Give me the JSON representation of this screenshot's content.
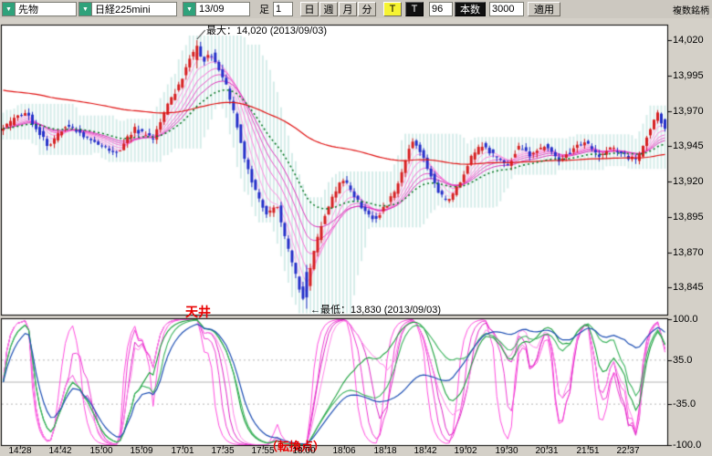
{
  "app": {
    "multi_symbol_label": "複数銘柄"
  },
  "toolbar": {
    "instrument_type": "先物",
    "instrument_name": "日経225mini",
    "contract_month": "13/09",
    "bar_type_label": "足",
    "interval_value": "1",
    "period_buttons": [
      "日",
      "週",
      "月",
      "分"
    ],
    "period_button_names": [
      "day",
      "week",
      "month",
      "minute"
    ],
    "tick_button_label": "T",
    "tick_button2_label": "T",
    "bars_value": "96",
    "bars_button_label": "本数",
    "range_value": "3000",
    "apply_button_label": "適用"
  },
  "colors": {
    "toolbar_bg": "#ccc8c0",
    "combo_button": "#2fa27b",
    "up_candle": "#d42020",
    "down_candle": "#2230c8",
    "ma_ribbon": [
      "#ffc0ec",
      "#ffa4e6",
      "#ff88df",
      "#f76cd6",
      "#ea4fc8",
      "#dc32ba"
    ],
    "ma_mid": "#0c7a28",
    "ma_long": "#e01010",
    "band": "rgba(120,195,185,0.30)",
    "osc_magenta": [
      "#ff50e0",
      "#f03cd4",
      "#e02ac8",
      "#ff86ea"
    ],
    "osc_green": [
      "#1da23e",
      "#3cb45e"
    ],
    "osc_blue": "#1d4fb4",
    "annotation_red": "#e80000"
  },
  "chart_data": {
    "type": "candlestick",
    "instrument": "日経225mini 13/09 1分足",
    "session_high": 14020,
    "session_low": 13830,
    "price_axis_labels": [
      "14,020",
      "13,995",
      "13,970",
      "13,945",
      "13,920",
      "13,895",
      "13,870",
      "13,845"
    ],
    "price_axis_values": [
      14020,
      13995,
      13970,
      13945,
      13920,
      13895,
      13870,
      13845
    ],
    "time_labels": [
      "14:28",
      "14:42",
      "15:00",
      "15:09",
      "17:01",
      "17:35",
      "17:55",
      "18:00",
      "18:06",
      "18:18",
      "18:42",
      "19:02",
      "19:30",
      "20:31",
      "21:51",
      "22:37"
    ],
    "annotations": {
      "max_text": "最大：14,020 (2013/09/03)",
      "min_text": "←最低：13,830 (2013/09/03)",
      "ceiling": "天井",
      "turning_point": "（転換点）"
    },
    "candle_count": 182,
    "peak": {
      "frac": 0.293,
      "price": 14020
    },
    "trough": {
      "frac": 0.457,
      "price": 13830
    },
    "price_path": [
      [
        0.0,
        13955
      ],
      [
        0.038,
        13970
      ],
      [
        0.073,
        13945
      ],
      [
        0.1,
        13960
      ],
      [
        0.134,
        13950
      ],
      [
        0.176,
        13940
      ],
      [
        0.203,
        13957
      ],
      [
        0.23,
        13950
      ],
      [
        0.251,
        13972
      ],
      [
        0.272,
        13990
      ],
      [
        0.285,
        14008
      ],
      [
        0.295,
        14016
      ],
      [
        0.306,
        14006
      ],
      [
        0.32,
        14010
      ],
      [
        0.34,
        13988
      ],
      [
        0.357,
        13960
      ],
      [
        0.37,
        13932
      ],
      [
        0.388,
        13910
      ],
      [
        0.402,
        13896
      ],
      [
        0.416,
        13906
      ],
      [
        0.429,
        13880
      ],
      [
        0.443,
        13858
      ],
      [
        0.457,
        13834
      ],
      [
        0.471,
        13868
      ],
      [
        0.484,
        13890
      ],
      [
        0.502,
        13910
      ],
      [
        0.516,
        13922
      ],
      [
        0.539,
        13905
      ],
      [
        0.562,
        13893
      ],
      [
        0.58,
        13902
      ],
      [
        0.597,
        13916
      ],
      [
        0.61,
        13936
      ],
      [
        0.621,
        13950
      ],
      [
        0.635,
        13940
      ],
      [
        0.656,
        13915
      ],
      [
        0.672,
        13905
      ],
      [
        0.69,
        13918
      ],
      [
        0.708,
        13936
      ],
      [
        0.724,
        13946
      ],
      [
        0.745,
        13938
      ],
      [
        0.763,
        13930
      ],
      [
        0.779,
        13945
      ],
      [
        0.8,
        13938
      ],
      [
        0.82,
        13946
      ],
      [
        0.841,
        13934
      ],
      [
        0.862,
        13943
      ],
      [
        0.882,
        13948
      ],
      [
        0.9,
        13938
      ],
      [
        0.919,
        13944
      ],
      [
        0.941,
        13938
      ],
      [
        0.958,
        13934
      ],
      [
        0.971,
        13950
      ],
      [
        0.988,
        13968
      ],
      [
        1.0,
        13958
      ]
    ],
    "ma": {
      "ribbon_periods": [
        3,
        5,
        8,
        12,
        16,
        21
      ],
      "mid_period": 30,
      "long_period": 120,
      "long_init": 13985
    },
    "oscillator": {
      "axis_labels": [
        "100.0",
        "35.0",
        "-35.0",
        "-100.0"
      ],
      "axis_values": [
        100,
        35,
        -35,
        -100
      ],
      "range": [
        -100,
        100
      ],
      "magenta_periods": [
        8,
        12,
        16,
        20
      ],
      "green_periods": [
        32,
        42
      ],
      "blue_period": 60
    }
  }
}
